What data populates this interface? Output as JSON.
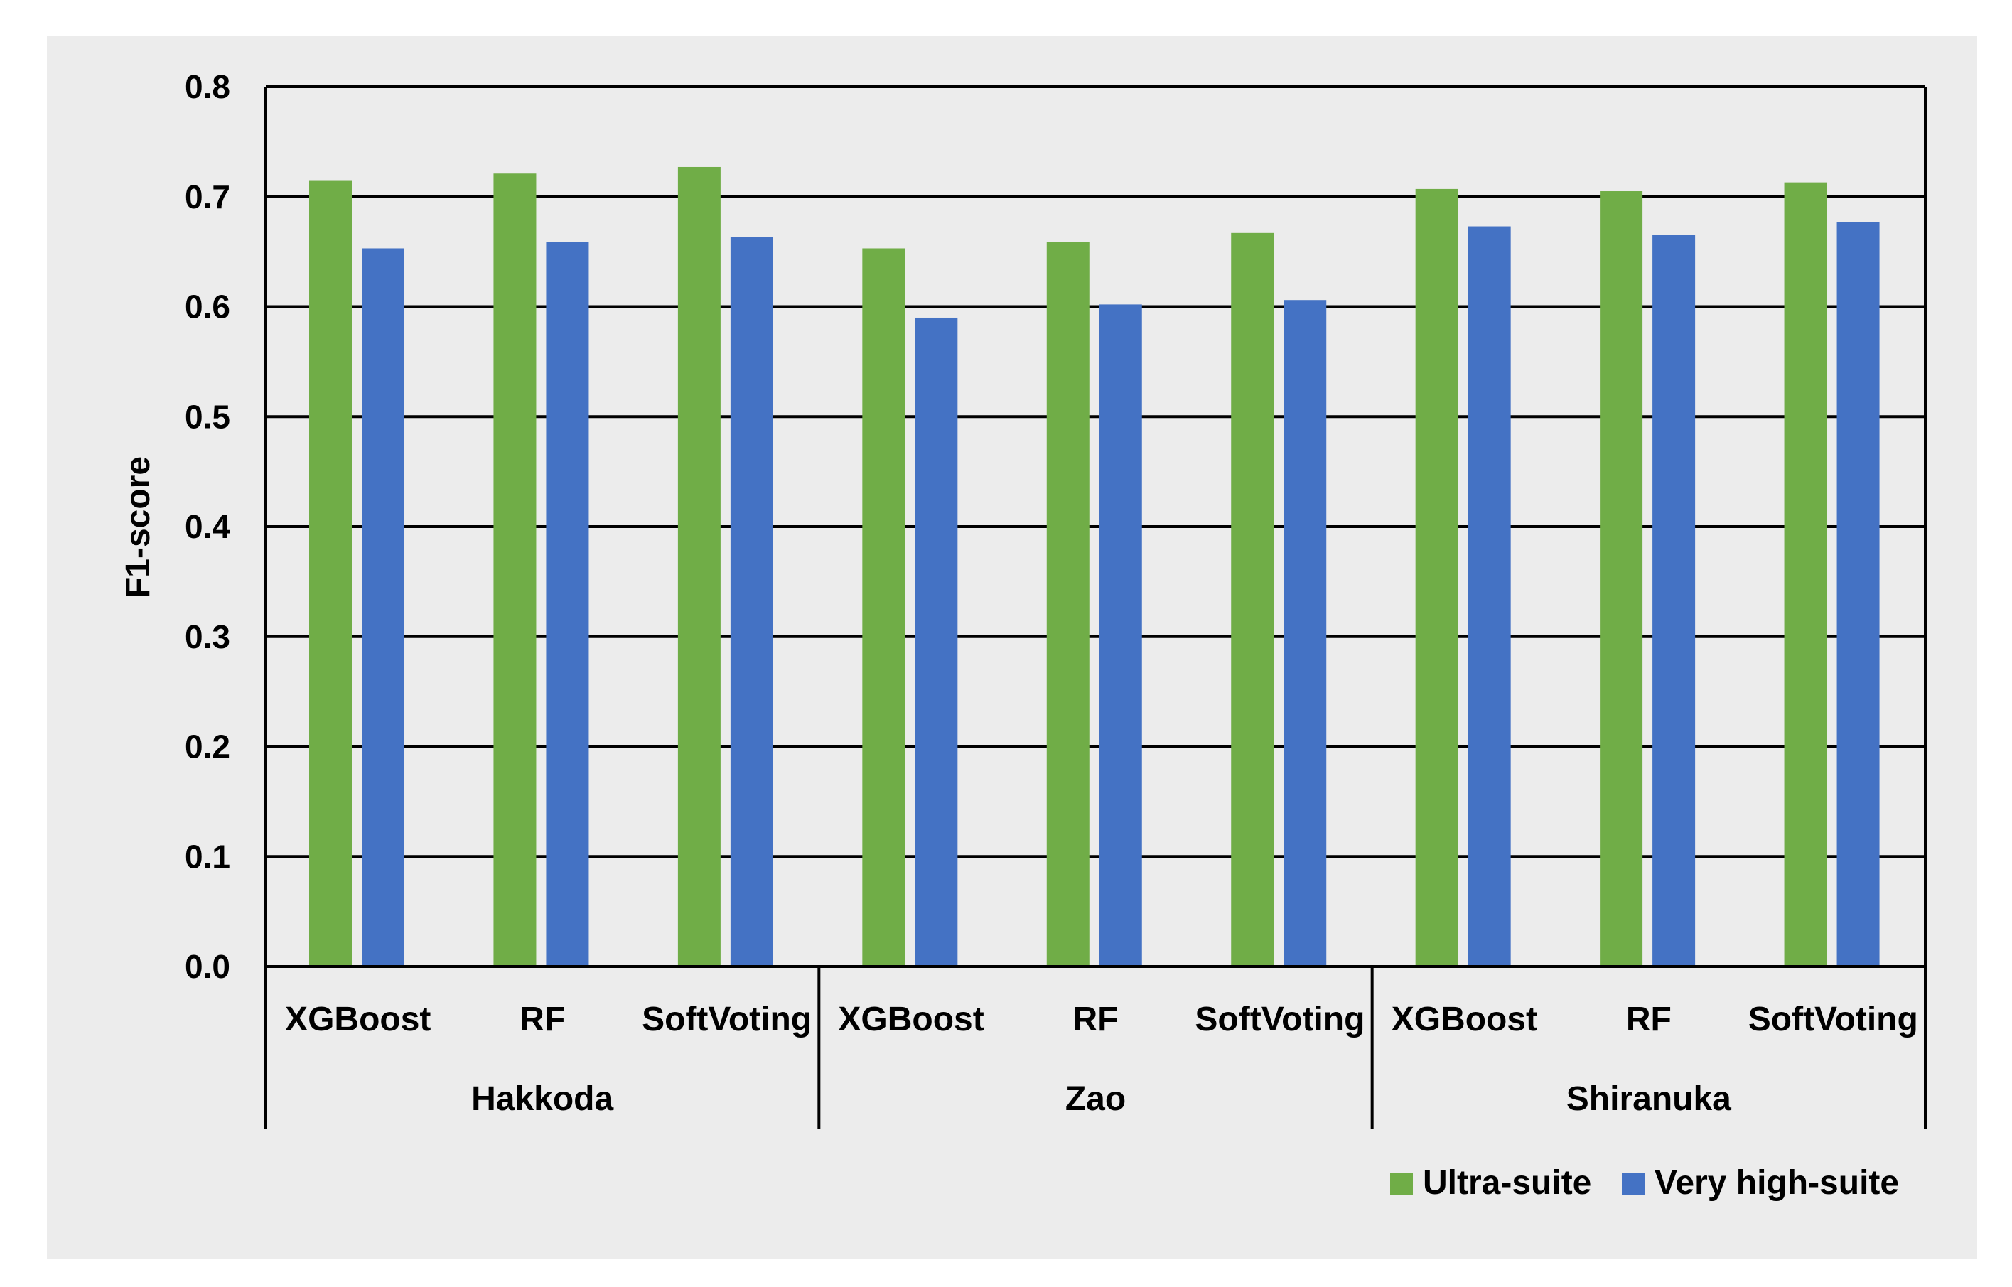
{
  "chart_data": {
    "type": "bar",
    "ylabel": "F1-score",
    "xlabel": "",
    "ylim": [
      0,
      0.8
    ],
    "yticks": [
      "0.0",
      "0.1",
      "0.2",
      "0.3",
      "0.4",
      "0.5",
      "0.6",
      "0.7",
      "0.8"
    ],
    "grid": true,
    "legend_position": "bottom-right",
    "groups": [
      {
        "label": "Hakkoda",
        "categories": [
          "XGBoost",
          "RF",
          "SoftVoting"
        ]
      },
      {
        "label": "Zao",
        "categories": [
          "XGBoost",
          "RF",
          "SoftVoting"
        ]
      },
      {
        "label": "Shiranuka",
        "categories": [
          "XGBoost",
          "RF",
          "SoftVoting"
        ]
      }
    ],
    "series": [
      {
        "name": "Ultra-suite",
        "color": "#70ad47",
        "values": [
          0.715,
          0.721,
          0.727,
          0.653,
          0.659,
          0.667,
          0.707,
          0.705,
          0.713
        ]
      },
      {
        "name": "Very high-suite",
        "color": "#4472c4",
        "values": [
          0.653,
          0.659,
          0.663,
          0.59,
          0.602,
          0.606,
          0.673,
          0.665,
          0.677
        ]
      }
    ]
  }
}
